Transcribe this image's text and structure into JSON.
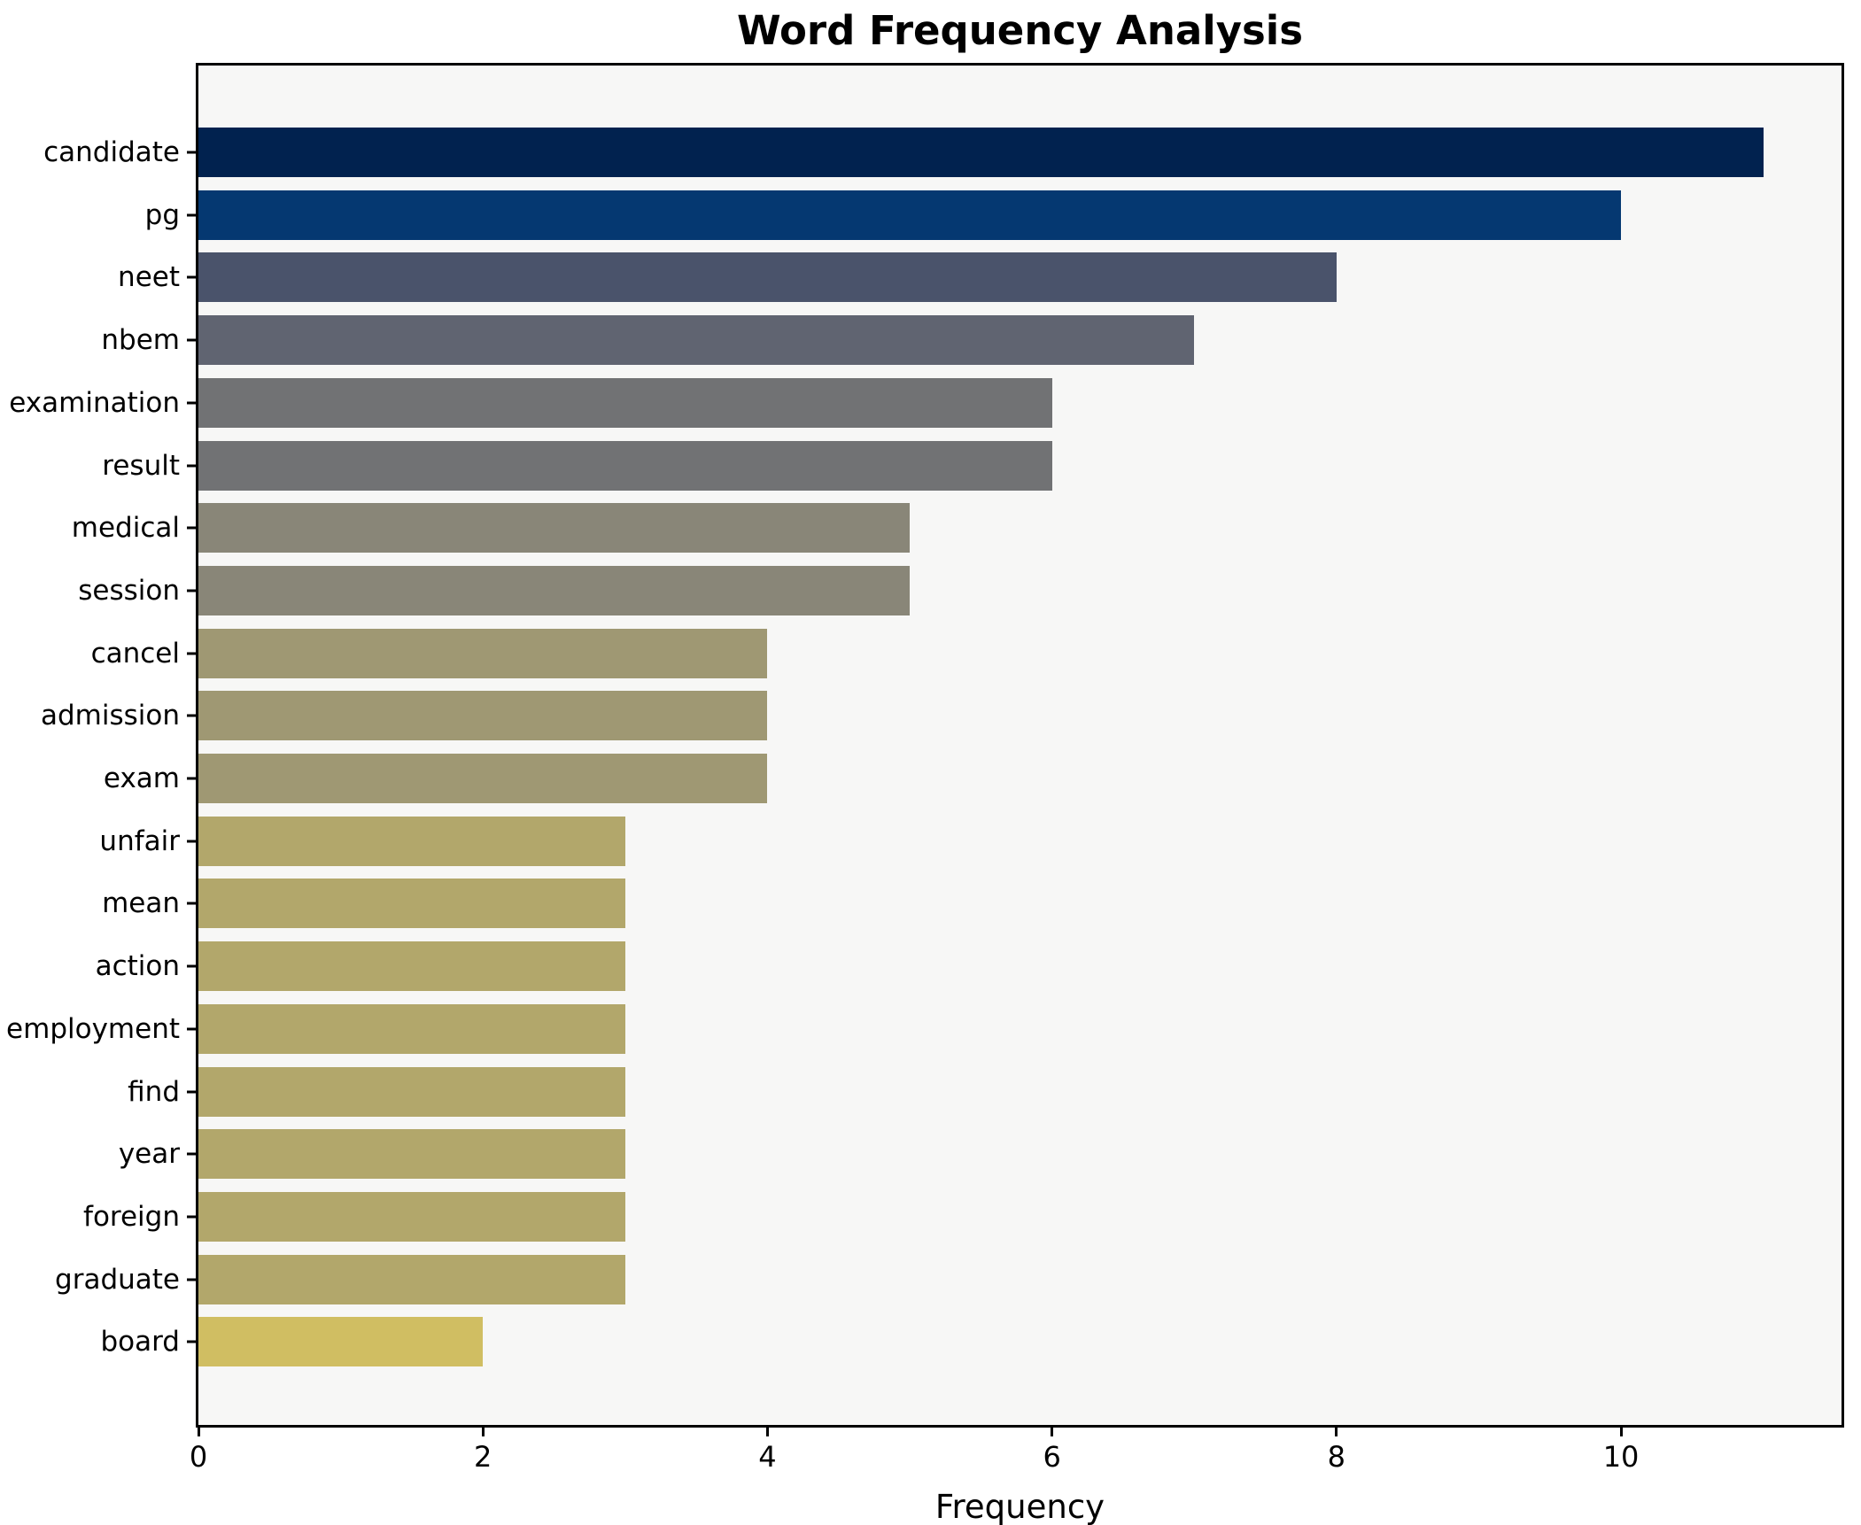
{
  "chart_data": {
    "type": "bar",
    "orientation": "horizontal",
    "title": "Word Frequency Analysis",
    "xlabel": "Frequency",
    "ylabel": "",
    "categories": [
      "candidate",
      "pg",
      "neet",
      "nbem",
      "examination",
      "result",
      "medical",
      "session",
      "cancel",
      "admission",
      "exam",
      "unfair",
      "mean",
      "action",
      "employment",
      "find",
      "year",
      "foreign",
      "graduate",
      "board"
    ],
    "values": [
      11,
      10,
      8,
      7,
      6,
      6,
      5,
      5,
      4,
      4,
      4,
      3,
      3,
      3,
      3,
      3,
      3,
      3,
      3,
      2
    ],
    "bar_colors": [
      "#01224f",
      "#053871",
      "#4a536b",
      "#606471",
      "#717274",
      "#717274",
      "#898678",
      "#898678",
      "#9f9873",
      "#9f9873",
      "#9f9873",
      "#b2a76b",
      "#b2a76b",
      "#b2a76b",
      "#b2a76b",
      "#b2a76b",
      "#b2a76b",
      "#b2a76b",
      "#b2a76b",
      "#d0be62"
    ],
    "x_ticks": [
      0,
      2,
      4,
      6,
      8,
      10
    ],
    "xlim": [
      0,
      11.55
    ],
    "grid": false,
    "legend": null,
    "plot_background": "#f7f7f6",
    "figure_background": "#ffffff",
    "spine_color": "#000000"
  }
}
